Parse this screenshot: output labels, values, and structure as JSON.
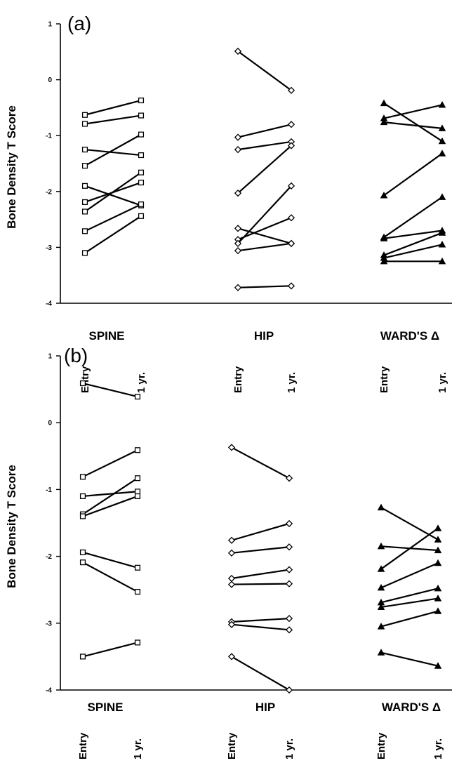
{
  "chart_data": [
    {
      "type": "line",
      "panel_label": "(a)",
      "ylabel": "Bone Density T Score",
      "ylim": [
        -4,
        1
      ],
      "yticks": [
        "1",
        "0",
        "-1",
        "-2",
        "-3",
        "-4"
      ],
      "ytick_values": [
        1,
        0,
        -1,
        -2,
        -3,
        -4
      ],
      "grid": false,
      "groups": [
        {
          "label": "SPINE",
          "marker": "square",
          "time_labels": [
            "Entry",
            "1 yr."
          ],
          "pairs": [
            [
              -0.63,
              -0.37
            ],
            [
              -0.79,
              -0.64
            ],
            [
              -1.25,
              -1.35
            ],
            [
              -1.54,
              -0.98
            ],
            [
              -1.9,
              -2.25
            ],
            [
              -2.19,
              -1.84
            ],
            [
              -2.36,
              -1.66
            ],
            [
              -2.71,
              -2.23
            ],
            [
              -3.1,
              -2.44
            ]
          ]
        },
        {
          "label": "HIP",
          "marker": "diamond",
          "time_labels": [
            "Entry",
            "1 yr."
          ],
          "pairs": [
            [
              0.51,
              -0.19
            ],
            [
              -1.03,
              -0.8
            ],
            [
              -1.25,
              -1.11
            ],
            [
              -2.03,
              -1.18
            ],
            [
              -2.66,
              -2.93
            ],
            [
              -2.86,
              -2.47
            ],
            [
              -2.93,
              -1.9
            ],
            [
              -3.06,
              -2.93
            ],
            [
              -3.72,
              -3.69
            ]
          ]
        },
        {
          "label": "WARD'S Δ",
          "marker": "triangle",
          "time_labels": [
            "Entry",
            "1 yr."
          ],
          "pairs": [
            [
              -0.42,
              -1.1
            ],
            [
              -0.69,
              -0.45
            ],
            [
              -0.76,
              -0.87
            ],
            [
              -2.07,
              -1.32
            ],
            [
              -2.82,
              -2.1
            ],
            [
              -2.84,
              -2.7
            ],
            [
              -3.14,
              -2.74
            ],
            [
              -3.19,
              -2.95
            ],
            [
              -3.25,
              -3.25
            ]
          ]
        }
      ]
    },
    {
      "type": "line",
      "panel_label": "(b)",
      "ylabel": "Bone Density T Score",
      "ylim": [
        -4,
        1
      ],
      "yticks": [
        "1",
        "0",
        "-1",
        "-2",
        "-3",
        "-4"
      ],
      "ytick_values": [
        1,
        0,
        -1,
        -2,
        -3,
        -4
      ],
      "grid": false,
      "groups": [
        {
          "label": "SPINE",
          "marker": "square",
          "time_labels": [
            "Entry",
            "1 yr."
          ],
          "pairs": [
            [
              0.59,
              0.39
            ],
            [
              -0.81,
              -0.41
            ],
            [
              -1.1,
              -1.03
            ],
            [
              -1.37,
              -0.83
            ],
            [
              -1.4,
              -1.1
            ],
            [
              -1.94,
              -2.17
            ],
            [
              -2.09,
              -2.53
            ],
            [
              -3.5,
              -3.29
            ]
          ]
        },
        {
          "label": "HIP",
          "marker": "diamond",
          "time_labels": [
            "Entry",
            "1 yr."
          ],
          "pairs": [
            [
              -0.37,
              -0.83
            ],
            [
              -1.76,
              -1.51
            ],
            [
              -1.95,
              -1.86
            ],
            [
              -2.33,
              -2.2
            ],
            [
              -2.42,
              -2.41
            ],
            [
              -2.98,
              -2.93
            ],
            [
              -3.02,
              -3.1
            ],
            [
              -3.5,
              -4.0
            ]
          ]
        },
        {
          "label": "WARD'S Δ",
          "marker": "triangle",
          "time_labels": [
            "Entry",
            "1 yr."
          ],
          "pairs": [
            [
              -1.27,
              -1.75
            ],
            [
              -1.85,
              -1.91
            ],
            [
              -2.19,
              -1.58
            ],
            [
              -2.47,
              -2.1
            ],
            [
              -2.69,
              -2.48
            ],
            [
              -2.76,
              -2.63
            ],
            [
              -3.05,
              -2.82
            ],
            [
              -3.44,
              -3.64
            ]
          ]
        }
      ]
    }
  ]
}
